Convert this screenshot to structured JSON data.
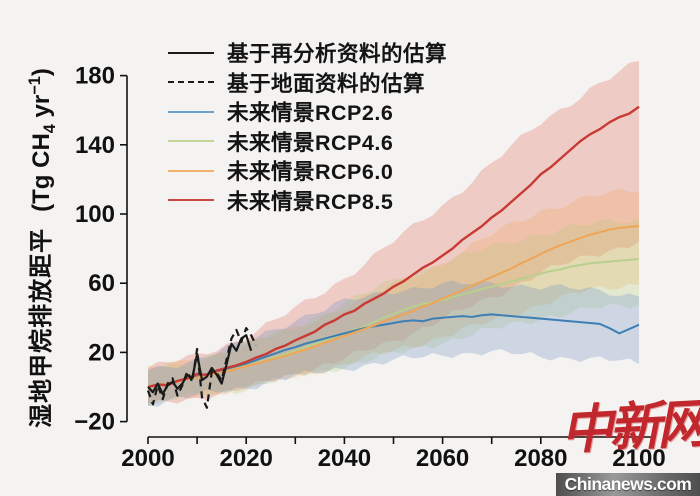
{
  "page": {
    "background_color": "#f5f3f1",
    "axis_color": "#111111"
  },
  "watermark": {
    "logo_text": "中新网",
    "site_text": "Chinanews.com",
    "logo_color": "#c1272d"
  },
  "chart_data": {
    "type": "line",
    "title": "",
    "ylabel_cn": "湿地甲烷排放距平",
    "ylabel_unit": {
      "prefix": "(Tg CH",
      "sub": "4",
      "mid": " yr",
      "sup": "−1",
      "suffix": ")"
    },
    "x_axis": {
      "range": [
        2000,
        2100
      ],
      "tick_years": [
        2000,
        2010,
        2020,
        2030,
        2040,
        2050,
        2060,
        2070,
        2080,
        2090,
        2100
      ],
      "label_years": [
        2000,
        2020,
        2040,
        2060,
        2080,
        2100
      ],
      "labels": [
        "2000",
        "2020",
        "2040",
        "2060",
        "2080",
        "2100"
      ]
    },
    "y_axis": {
      "range": [
        -20,
        180
      ],
      "ticks": [
        -20,
        20,
        60,
        100,
        140,
        180
      ],
      "labels": [
        "−20",
        "20",
        "60",
        "100",
        "140",
        "180"
      ]
    },
    "legend": [
      {
        "label": "基于再分析资料的估算",
        "style": "solid",
        "color": "#1a1a1a"
      },
      {
        "label": "基于地面资料的估算",
        "style": "dashed",
        "color": "#1a1a1a"
      },
      {
        "label": "未来情景RCP2.6",
        "style": "solid",
        "color": "#6aa3cd"
      },
      {
        "label": "未来情景RCP4.6",
        "style": "solid",
        "color": "#c3d69b"
      },
      {
        "label": "未来情景RCP6.0",
        "style": "solid",
        "color": "#f3b16a"
      },
      {
        "label": "未来情景RCP8.5",
        "style": "solid",
        "color": "#cd4640"
      }
    ],
    "bands": [
      {
        "name": "rcp85-band",
        "fill": "rgba(224,88,78,0.26)",
        "years": [
          2000,
          2010,
          2020,
          2030,
          2040,
          2050,
          2060,
          2070,
          2080,
          2090,
          2100
        ],
        "lower": [
          -11,
          -6,
          -1,
          8,
          16,
          27,
          39,
          52,
          66,
          76,
          84
        ],
        "upper": [
          11,
          18,
          29,
          45,
          63,
          84,
          105,
          129,
          153,
          172,
          188
        ]
      },
      {
        "name": "rcp60-band",
        "fill": "rgba(242,165,80,0.24)",
        "years": [
          2000,
          2010,
          2020,
          2030,
          2040,
          2050,
          2060,
          2070,
          2080,
          2090,
          2100
        ],
        "lower": [
          -10,
          -5,
          0,
          6,
          13,
          21,
          29,
          38,
          48,
          56,
          60
        ],
        "upper": [
          10,
          16,
          24,
          34,
          46,
          59,
          72,
          88,
          102,
          110,
          114
        ]
      },
      {
        "name": "rcp46-band",
        "fill": "rgba(176,200,120,0.26)",
        "years": [
          2000,
          2010,
          2020,
          2030,
          2040,
          2050,
          2060,
          2070,
          2080,
          2090,
          2100
        ],
        "lower": [
          -10,
          -5,
          -1,
          6,
          12,
          19,
          26,
          33,
          40,
          45,
          48
        ],
        "upper": [
          10,
          16,
          25,
          35,
          48,
          62,
          72,
          81,
          89,
          94,
          97
        ]
      },
      {
        "name": "rcp26-band",
        "fill": "rgba(115,150,195,0.30)",
        "years": [
          2000,
          2010,
          2020,
          2030,
          2040,
          2050,
          2060,
          2070,
          2080,
          2090,
          2100
        ],
        "lower": [
          -10,
          -5,
          0,
          6,
          11,
          15,
          19,
          20,
          18,
          16,
          14
        ],
        "upper": [
          10,
          16,
          26,
          39,
          49,
          56,
          59,
          60,
          58,
          56,
          53
        ]
      }
    ],
    "series": [
      {
        "name": "rcp46",
        "label": "未来情景RCP4.6",
        "color": "#b8cf8e",
        "width": 2,
        "dash": "",
        "years": [
          2000,
          2002,
          2004,
          2006,
          2008,
          2010,
          2012,
          2014,
          2016,
          2018,
          2020,
          2022,
          2024,
          2026,
          2028,
          2030,
          2032,
          2034,
          2036,
          2038,
          2040,
          2042,
          2044,
          2046,
          2048,
          2050,
          2052,
          2054,
          2056,
          2058,
          2060,
          2062,
          2064,
          2066,
          2068,
          2070,
          2072,
          2074,
          2076,
          2078,
          2080,
          2082,
          2084,
          2086,
          2088,
          2090,
          2092,
          2094,
          2096,
          2098,
          2100
        ],
        "values": [
          0,
          1,
          2,
          3.5,
          4.5,
          6,
          7,
          8.5,
          10,
          11,
          12.5,
          14,
          15.5,
          17.5,
          19,
          21,
          23,
          25,
          27,
          29,
          31,
          33,
          35,
          37.5,
          40,
          42,
          44.5,
          46.5,
          48,
          49,
          50,
          52,
          53.5,
          55,
          56.5,
          58,
          59.5,
          61,
          62.5,
          64,
          65.5,
          67,
          68,
          69.5,
          70.5,
          71.5,
          72,
          72.5,
          73,
          73.5,
          74
        ]
      },
      {
        "name": "rcp26",
        "label": "未来情景RCP2.6",
        "color": "#3d7fb4",
        "width": 2,
        "dash": "",
        "years": [
          2000,
          2002,
          2004,
          2006,
          2008,
          2010,
          2012,
          2014,
          2016,
          2018,
          2020,
          2022,
          2024,
          2026,
          2028,
          2030,
          2032,
          2034,
          2036,
          2038,
          2040,
          2042,
          2044,
          2046,
          2048,
          2050,
          2052,
          2054,
          2056,
          2058,
          2060,
          2062,
          2064,
          2066,
          2068,
          2070,
          2072,
          2074,
          2076,
          2078,
          2080,
          2082,
          2084,
          2086,
          2088,
          2090,
          2092,
          2094,
          2096,
          2098,
          2100
        ],
        "values": [
          0,
          1,
          2,
          3.5,
          5,
          6,
          7.5,
          9,
          10.5,
          12,
          13.5,
          15.5,
          17.5,
          19.5,
          21.5,
          23,
          25,
          26.5,
          28,
          29.5,
          31,
          32.5,
          34,
          35,
          36,
          37,
          38,
          38.5,
          38,
          39.5,
          40,
          40.5,
          41,
          40.5,
          41.5,
          42,
          41.5,
          41,
          40.5,
          40,
          39.5,
          39,
          38.5,
          38,
          37.5,
          37,
          36.5,
          34,
          31,
          33.5,
          36
        ]
      },
      {
        "name": "rcp60",
        "label": "未来情景RCP6.0",
        "color": "#f0a455",
        "width": 2,
        "dash": "",
        "years": [
          2000,
          2002,
          2004,
          2006,
          2008,
          2010,
          2012,
          2014,
          2016,
          2018,
          2020,
          2022,
          2024,
          2026,
          2028,
          2030,
          2032,
          2034,
          2036,
          2038,
          2040,
          2042,
          2044,
          2046,
          2048,
          2050,
          2052,
          2054,
          2056,
          2058,
          2060,
          2062,
          2064,
          2066,
          2068,
          2070,
          2072,
          2074,
          2076,
          2078,
          2080,
          2082,
          2084,
          2086,
          2088,
          2090,
          2092,
          2094,
          2096,
          2098,
          2100
        ],
        "values": [
          0,
          1,
          2,
          3,
          4.5,
          5.5,
          6.5,
          8,
          9,
          10.5,
          12,
          13.5,
          15,
          16.5,
          18,
          20,
          21.5,
          23.5,
          25.5,
          27.5,
          29.5,
          31.5,
          33.5,
          35.5,
          38,
          40,
          42,
          44,
          46.5,
          48.5,
          51,
          53.5,
          56,
          58.5,
          61,
          63.5,
          66,
          68.5,
          71.5,
          74,
          77,
          79.5,
          82,
          84,
          86,
          88,
          89.5,
          91,
          92,
          92.5,
          93
        ]
      },
      {
        "name": "rcp85",
        "label": "未来情景RCP8.5",
        "color": "#c93a34",
        "width": 2.4,
        "dash": "",
        "years": [
          2000,
          2002,
          2004,
          2006,
          2008,
          2010,
          2012,
          2014,
          2016,
          2018,
          2020,
          2022,
          2024,
          2026,
          2028,
          2030,
          2032,
          2034,
          2036,
          2038,
          2040,
          2042,
          2044,
          2046,
          2048,
          2050,
          2052,
          2054,
          2056,
          2058,
          2060,
          2062,
          2064,
          2066,
          2068,
          2070,
          2072,
          2074,
          2076,
          2078,
          2080,
          2082,
          2084,
          2086,
          2088,
          2090,
          2092,
          2094,
          2096,
          2098,
          2100
        ],
        "values": [
          0,
          1.5,
          1,
          3.5,
          5,
          7.5,
          7,
          9.5,
          11,
          12.5,
          14.5,
          17,
          19,
          22,
          24,
          27,
          29.5,
          32,
          36,
          38.5,
          42,
          44,
          48,
          51,
          54,
          58,
          61,
          65,
          69,
          72,
          76,
          80,
          85,
          89,
          93,
          98,
          102,
          107,
          112,
          117,
          123,
          127,
          132,
          137,
          142,
          146,
          149,
          153,
          156,
          158,
          162
        ]
      },
      {
        "name": "obs-dashed",
        "label": "基于地面资料的估算",
        "color": "#1a1a1a",
        "width": 2.2,
        "dash": "7 5",
        "years": [
          2000,
          2001,
          2002,
          2003,
          2004,
          2005,
          2006,
          2007,
          2008,
          2009,
          2010,
          2011,
          2012,
          2013,
          2014,
          2015,
          2016,
          2017,
          2018,
          2019,
          2020,
          2021,
          2022
        ],
        "values": [
          -2,
          -10,
          1,
          -7,
          2,
          5,
          -5,
          1,
          9,
          3,
          22,
          -6,
          -12,
          9,
          8,
          4,
          16,
          28,
          33,
          26,
          34,
          30,
          24
        ]
      },
      {
        "name": "obs-solid",
        "label": "基于再分析资料的估算",
        "color": "#1a1a1a",
        "width": 2.2,
        "dash": "",
        "years": [
          2000,
          2001,
          2002,
          2003,
          2004,
          2005,
          2006,
          2007,
          2008,
          2009,
          2010,
          2011,
          2012,
          2013,
          2014,
          2015,
          2016,
          2017,
          2018,
          2019,
          2020,
          2021
        ],
        "values": [
          0,
          -3,
          2,
          -4,
          1,
          3,
          -1,
          2,
          7,
          5,
          19,
          4,
          6,
          11,
          7,
          2,
          13,
          25,
          21,
          28,
          30,
          21
        ]
      }
    ]
  }
}
